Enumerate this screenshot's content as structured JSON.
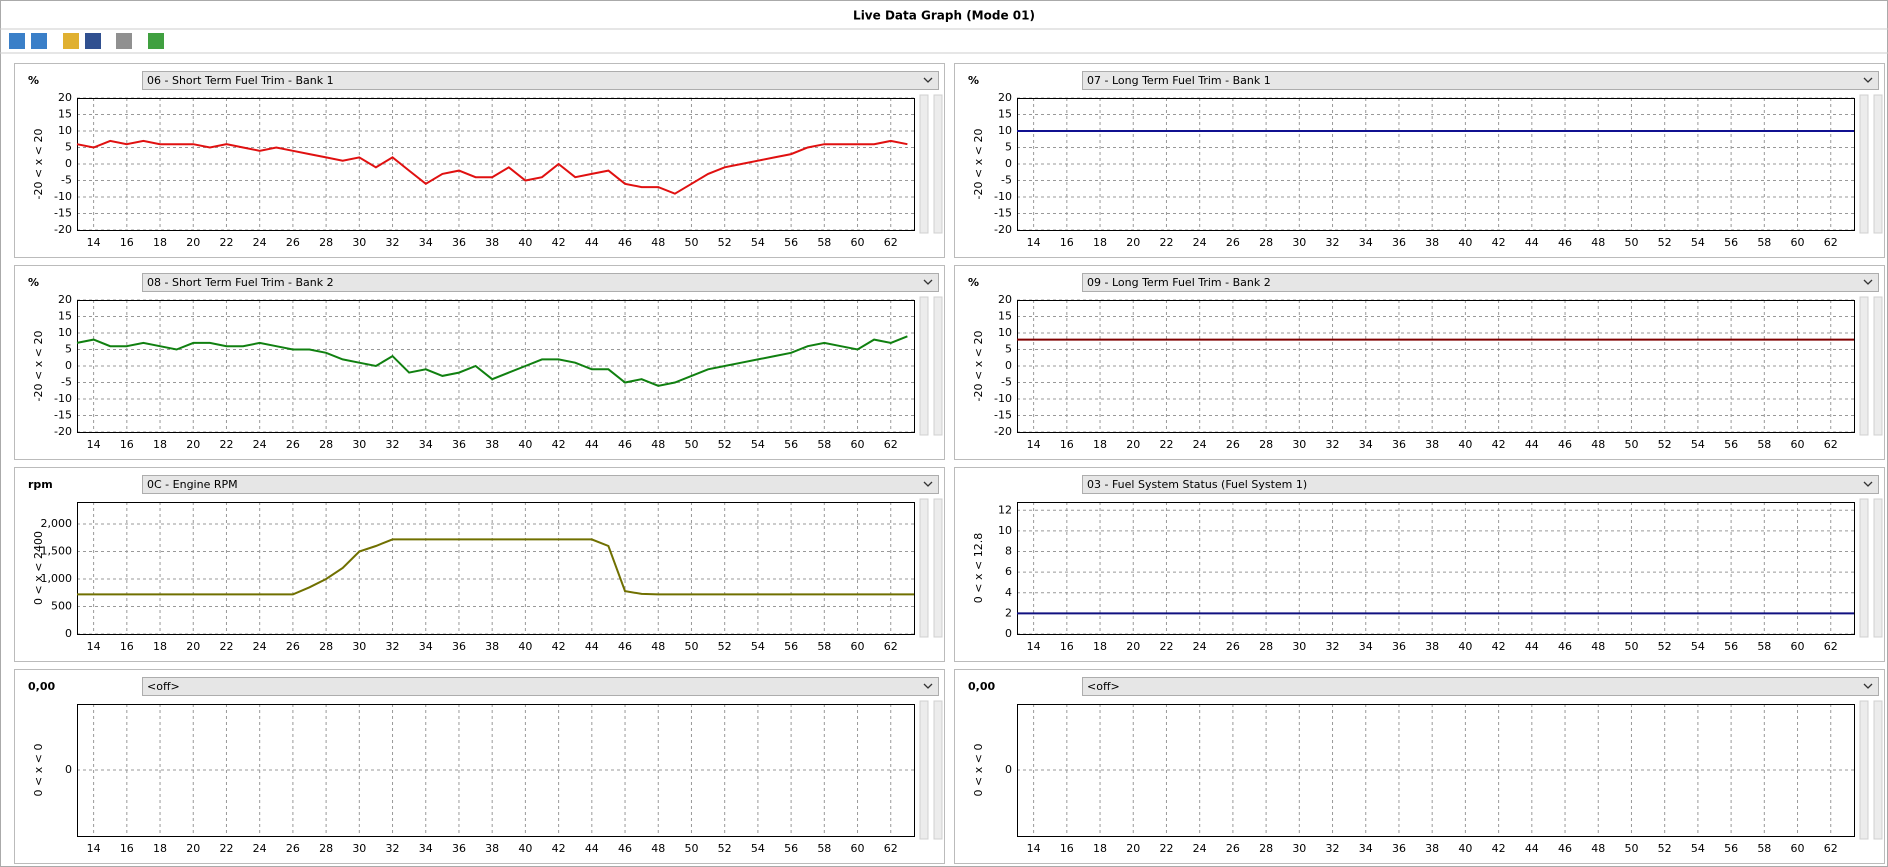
{
  "window": {
    "title": "Live Data Graph (Mode 01)"
  },
  "chart_data": [
    {
      "type": "line",
      "unit": "%",
      "unit_color": "#e02020",
      "title": "06 - Short Term Fuel Trim - Bank 1",
      "y_label": "-20 < x < 20",
      "xlim": [
        13,
        63.4
      ],
      "xticks": [
        14,
        16,
        18,
        20,
        22,
        24,
        26,
        28,
        30,
        32,
        34,
        36,
        38,
        40,
        42,
        44,
        46,
        48,
        50,
        52,
        54,
        56,
        58,
        60,
        62
      ],
      "ylim": [
        -20,
        20
      ],
      "yticks": [
        -20,
        -15,
        -10,
        -5,
        0,
        5,
        10,
        15,
        20
      ],
      "grid": true,
      "series": [
        {
          "color": "#e01010",
          "x": [
            13,
            14,
            15,
            16,
            17,
            18,
            19,
            20,
            21,
            22,
            23,
            24,
            25,
            26,
            27,
            28,
            29,
            30,
            31,
            32,
            33,
            34,
            35,
            36,
            37,
            38,
            39,
            40,
            41,
            42,
            43,
            44,
            45,
            46,
            47,
            48,
            49,
            50,
            51,
            52,
            53,
            54,
            55,
            56,
            57,
            58,
            59,
            60,
            61,
            62,
            63
          ],
          "values": [
            6,
            5,
            7,
            6,
            7,
            6,
            6,
            6,
            5,
            6,
            5,
            4,
            5,
            4,
            3,
            2,
            1,
            2,
            -1,
            2,
            -2,
            -6,
            -3,
            -2,
            -4,
            -4,
            -1,
            -5,
            -4,
            0,
            -4,
            -3,
            -2,
            -6,
            -7,
            -7,
            -9,
            -6,
            -3,
            -1,
            0,
            1,
            2,
            3,
            5,
            6,
            6,
            6,
            6,
            7,
            6
          ]
        }
      ]
    },
    {
      "type": "line",
      "unit": "%",
      "unit_color": "#1010d0",
      "title": "07 - Long Term Fuel Trim - Bank 1",
      "y_label": "-20 < x < 20",
      "xlim": [
        13,
        63.4
      ],
      "xticks": [
        14,
        16,
        18,
        20,
        22,
        24,
        26,
        28,
        30,
        32,
        34,
        36,
        38,
        40,
        42,
        44,
        46,
        48,
        50,
        52,
        54,
        56,
        58,
        60,
        62
      ],
      "ylim": [
        -20,
        20
      ],
      "yticks": [
        -20,
        -15,
        -10,
        -5,
        0,
        5,
        10,
        15,
        20
      ],
      "grid": true,
      "series": [
        {
          "color": "#101090",
          "x": [
            13,
            63.4
          ],
          "values": [
            10,
            10
          ]
        }
      ]
    },
    {
      "type": "line",
      "unit": "%",
      "unit_color": "#109010",
      "title": "08 - Short Term Fuel Trim - Bank 2",
      "y_label": "-20 < x < 20",
      "xlim": [
        13,
        63.4
      ],
      "xticks": [
        14,
        16,
        18,
        20,
        22,
        24,
        26,
        28,
        30,
        32,
        34,
        36,
        38,
        40,
        42,
        44,
        46,
        48,
        50,
        52,
        54,
        56,
        58,
        60,
        62
      ],
      "ylim": [
        -20,
        20
      ],
      "yticks": [
        -20,
        -15,
        -10,
        -5,
        0,
        5,
        10,
        15,
        20
      ],
      "grid": true,
      "series": [
        {
          "color": "#108010",
          "x": [
            13,
            14,
            15,
            16,
            17,
            18,
            19,
            20,
            21,
            22,
            23,
            24,
            25,
            26,
            27,
            28,
            29,
            30,
            31,
            32,
            33,
            34,
            35,
            36,
            37,
            38,
            39,
            40,
            41,
            42,
            43,
            44,
            45,
            46,
            47,
            48,
            49,
            50,
            51,
            52,
            53,
            54,
            55,
            56,
            57,
            58,
            59,
            60,
            61,
            62,
            63
          ],
          "values": [
            7,
            8,
            6,
            6,
            7,
            6,
            5,
            7,
            7,
            6,
            6,
            7,
            6,
            5,
            5,
            4,
            2,
            1,
            0,
            3,
            -2,
            -1,
            -3,
            -2,
            0,
            -4,
            -2,
            0,
            2,
            2,
            1,
            -1,
            -1,
            -5,
            -4,
            -6,
            -5,
            -3,
            -1,
            0,
            1,
            2,
            3,
            4,
            6,
            7,
            6,
            5,
            8,
            7,
            9
          ]
        }
      ]
    },
    {
      "type": "line",
      "unit": "%",
      "unit_color": "#a01010",
      "title": "09 - Long Term Fuel Trim - Bank 2",
      "y_label": "-20 < x < 20",
      "xlim": [
        13,
        63.4
      ],
      "xticks": [
        14,
        16,
        18,
        20,
        22,
        24,
        26,
        28,
        30,
        32,
        34,
        36,
        38,
        40,
        42,
        44,
        46,
        48,
        50,
        52,
        54,
        56,
        58,
        60,
        62
      ],
      "ylim": [
        -20,
        20
      ],
      "yticks": [
        -20,
        -15,
        -10,
        -5,
        0,
        5,
        10,
        15,
        20
      ],
      "grid": true,
      "series": [
        {
          "color": "#800000",
          "x": [
            13,
            63.4
          ],
          "values": [
            8,
            8
          ]
        }
      ]
    },
    {
      "type": "line",
      "unit": "rpm",
      "unit_color": "#807000",
      "title": "0C - Engine RPM",
      "y_label": "0 < x < 2400",
      "xlim": [
        13,
        63.4
      ],
      "xticks": [
        14,
        16,
        18,
        20,
        22,
        24,
        26,
        28,
        30,
        32,
        34,
        36,
        38,
        40,
        42,
        44,
        46,
        48,
        50,
        52,
        54,
        56,
        58,
        60,
        62
      ],
      "ylim": [
        0,
        2400
      ],
      "yticks": [
        0,
        500,
        {
          "value": 1000,
          "label": "1,000"
        },
        {
          "value": 1500,
          "label": "1,500"
        },
        {
          "value": 2000,
          "label": "2,000"
        }
      ],
      "grid": true,
      "series": [
        {
          "color": "#707000",
          "x": [
            13,
            26,
            27,
            28,
            29,
            30,
            31,
            32,
            44,
            45,
            46,
            47,
            48,
            63.4
          ],
          "values": [
            720,
            720,
            850,
            1000,
            1200,
            1500,
            1600,
            1720,
            1720,
            1600,
            780,
            730,
            720,
            720
          ]
        }
      ]
    },
    {
      "type": "line",
      "title": "03 - Fuel System Status (Fuel System 1)",
      "y_label": "0 < x < 12.8",
      "xlim": [
        13,
        63.4
      ],
      "xticks": [
        14,
        16,
        18,
        20,
        22,
        24,
        26,
        28,
        30,
        32,
        34,
        36,
        38,
        40,
        42,
        44,
        46,
        48,
        50,
        52,
        54,
        56,
        58,
        60,
        62
      ],
      "ylim": [
        0,
        12.8
      ],
      "yticks": [
        0,
        2,
        4,
        6,
        8,
        10,
        12
      ],
      "grid": true,
      "series": [
        {
          "color": "#101080",
          "x": [
            13,
            63.4
          ],
          "values": [
            2,
            2
          ]
        }
      ]
    },
    {
      "type": "line",
      "unit": "0,00",
      "unit_color": "#800080",
      "title": "<off>",
      "y_label": "0 < x < 0",
      "xlim": [
        13,
        63.4
      ],
      "xticks": [
        14,
        16,
        18,
        20,
        22,
        24,
        26,
        28,
        30,
        32,
        34,
        36,
        38,
        40,
        42,
        44,
        46,
        48,
        50,
        52,
        54,
        56,
        58,
        60,
        62
      ],
      "ylim": [
        -1,
        1
      ],
      "yticks": [
        0
      ],
      "grid": true,
      "series": []
    },
    {
      "type": "line",
      "unit": "0,00",
      "unit_color": "#008080",
      "title": "<off>",
      "y_label": "0 < x < 0",
      "xlim": [
        13,
        63.4
      ],
      "xticks": [
        14,
        16,
        18,
        20,
        22,
        24,
        26,
        28,
        30,
        32,
        34,
        36,
        38,
        40,
        42,
        44,
        46,
        48,
        50,
        52,
        54,
        56,
        58,
        60,
        62
      ],
      "ylim": [
        -1,
        1
      ],
      "yticks": [
        0
      ],
      "grid": true,
      "series": []
    }
  ]
}
